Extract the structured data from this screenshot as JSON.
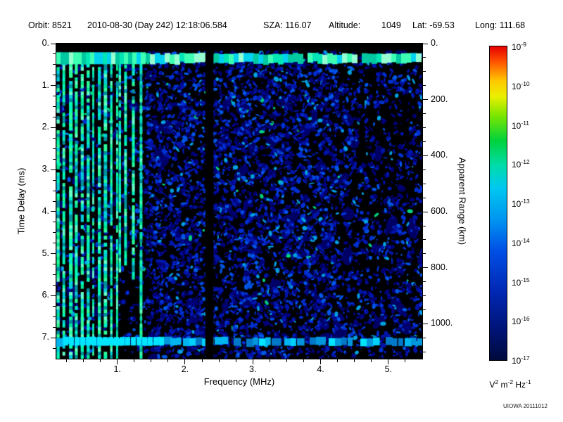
{
  "header": {
    "orbit": "Orbit: 8521",
    "datetime": "2010-08-30 (Day 242) 12:18:06.584",
    "sza": "SZA: 116.07",
    "altitude_label": "Altitude:",
    "altitude_value": "1049",
    "lat": "Lat: -69.53",
    "long": "Long: 111.68"
  },
  "footer": {
    "credit": "UIOWA 20111012"
  },
  "chart_data": {
    "type": "heatmap",
    "xlabel": "Frequency (MHz)",
    "ylabel": "Time Delay (ms)",
    "y2label": "Apparent Range (km)",
    "x_axis": {
      "min": 0.1,
      "max": 5.5,
      "minor_step": 0.25,
      "ticks": [
        {
          "v": 1,
          "label": "1."
        },
        {
          "v": 2,
          "label": "2."
        },
        {
          "v": 3,
          "label": "3."
        },
        {
          "v": 4,
          "label": "4."
        },
        {
          "v": 5,
          "label": "5."
        }
      ]
    },
    "y_axis": {
      "min": 0,
      "max": 7.5,
      "minor_step": 0.25,
      "ticks": [
        {
          "v": 0,
          "label": "0."
        },
        {
          "v": 1,
          "label": "1."
        },
        {
          "v": 2,
          "label": "2."
        },
        {
          "v": 3,
          "label": "3."
        },
        {
          "v": 4,
          "label": "4."
        },
        {
          "v": 5,
          "label": "5."
        },
        {
          "v": 6,
          "label": "6."
        },
        {
          "v": 7,
          "label": "7."
        }
      ]
    },
    "y2_axis": {
      "km_per_ms": 149.9,
      "minor_step": 50,
      "ticks": [
        {
          "v": 0,
          "label": "0."
        },
        {
          "v": 200,
          "label": "200."
        },
        {
          "v": 400,
          "label": "400."
        },
        {
          "v": 600,
          "label": "600."
        },
        {
          "v": 800,
          "label": "800."
        },
        {
          "v": 1000,
          "label": "1000."
        }
      ]
    },
    "colorbar": {
      "scale": "log",
      "ticks": [
        {
          "base": "10",
          "exp": "-9"
        },
        {
          "base": "10",
          "exp": "-10"
        },
        {
          "base": "10",
          "exp": "-11"
        },
        {
          "base": "10",
          "exp": "-12"
        },
        {
          "base": "10",
          "exp": "-13"
        },
        {
          "base": "10",
          "exp": "-14"
        },
        {
          "base": "10",
          "exp": "-15"
        },
        {
          "base": "10",
          "exp": "-16"
        },
        {
          "base": "10",
          "exp": "-17"
        }
      ],
      "unit_parts": [
        {
          "t": "V"
        },
        {
          "t": "2",
          "sup": true
        },
        {
          "t": " m"
        },
        {
          "t": "-2",
          "sup": true
        },
        {
          "t": " Hz"
        },
        {
          "t": "-1",
          "sup": true
        }
      ],
      "stops": [
        [
          0.0,
          "#e60000"
        ],
        [
          0.05,
          "#ff5500"
        ],
        [
          0.11,
          "#ffc800"
        ],
        [
          0.16,
          "#eaf000"
        ],
        [
          0.22,
          "#7ce600"
        ],
        [
          0.3,
          "#00d23c"
        ],
        [
          0.38,
          "#00dcaa"
        ],
        [
          0.45,
          "#00c8f0"
        ],
        [
          0.55,
          "#0096f0"
        ],
        [
          0.65,
          "#0050e6"
        ],
        [
          0.78,
          "#0028b4"
        ],
        [
          0.9,
          "#001478"
        ],
        [
          1.0,
          "#000a3c"
        ]
      ]
    },
    "features": {
      "seed": 20111012,
      "background": "#000000",
      "blank_top_ms": 0.16,
      "noise": {
        "big_patch_count": 170,
        "big_patch_color": "#000064",
        "count": 9000,
        "palette": [
          "#000078",
          "#0014aa",
          "#0030d2",
          "#0055e6",
          "#00a0e0",
          "#00d080"
        ],
        "dense_range_mhz": [
          1.42,
          4.25
        ],
        "dense_p": 0.88,
        "right_p": 0.5,
        "left_p": 0.3
      },
      "stripes": {
        "dense_range_mhz": [
          0.105,
          1.0
        ],
        "sparse_range_mhz": [
          1.02,
          1.3
        ],
        "palette": [
          "#00e896",
          "#00ffb4",
          "#2cff9c",
          "#00d2dc",
          "#00f0c8",
          "#64ffc8"
        ],
        "dim_color": "#00929e"
      },
      "plasma_line_mhz": 1.34,
      "top_band": {
        "delay_ms": [
          0.24,
          0.44
        ],
        "palette": [
          "#00e6b4",
          "#00d2f0",
          "#3cffb4",
          "#00c8a0",
          "#96ffd2"
        ]
      },
      "bottom_band": {
        "delay_ms": [
          7.0,
          7.17
        ],
        "palette": [
          "#00b4f0",
          "#0096dc",
          "#00d2ff",
          "#0078c8",
          "#00e6ff"
        ]
      },
      "gap_mhz": [
        2.3,
        2.42
      ]
    }
  }
}
